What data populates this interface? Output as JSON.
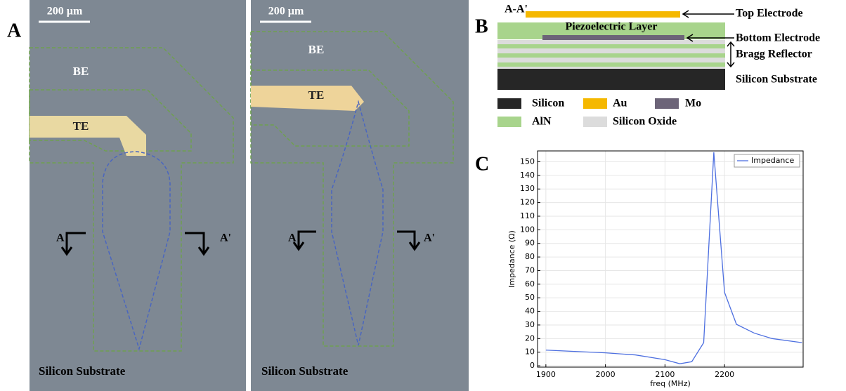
{
  "panels": {
    "a": {
      "label": "A",
      "left": {
        "scale_bar": "200 µm",
        "be": "BE",
        "te": "TE",
        "cut_left": "A",
        "cut_right": "A'",
        "substrate": "Silicon Substrate"
      },
      "right": {
        "scale_bar": "200 µm",
        "be": "BE",
        "te": "TE",
        "cut_left": "A",
        "cut_right": "A'",
        "substrate": "Silicon Substrate"
      }
    },
    "b": {
      "label": "B",
      "section": "A-A'",
      "piezo": "Piezoelectric Layer",
      "top_electrode": "Top Electrode",
      "bottom_electrode": "Bottom Electrode",
      "bragg": "Bragg Reflector",
      "substrate": "Silicon Substrate",
      "legend": [
        "Silicon",
        "Au",
        "Mo",
        "AlN",
        "Silicon Oxide"
      ]
    },
    "c": {
      "label": "C"
    }
  },
  "chart_data": {
    "type": "line",
    "xlabel": "freq (MHz)",
    "ylabel": "Impedance (Ω)",
    "x": [
      1900,
      2000,
      2050,
      2100,
      2125,
      2145,
      2165,
      2182,
      2200,
      2220,
      2250,
      2280,
      2330
    ],
    "series": [
      {
        "name": "Impedance",
        "color": "#4d6fe0",
        "values": [
          11.5,
          9.5,
          8,
          4.5,
          1.5,
          3,
          17,
          157,
          54,
          30.5,
          24,
          20,
          17
        ]
      }
    ],
    "xlim": [
      1886,
      2332
    ],
    "ylim": [
      -1,
      158
    ],
    "xticks": [
      1900,
      2000,
      2100,
      2200
    ],
    "yticks": [
      0,
      10,
      20,
      30,
      40,
      50,
      60,
      70,
      80,
      90,
      100,
      110,
      120,
      130,
      140,
      150
    ],
    "grid": true,
    "legend": "upper right"
  }
}
